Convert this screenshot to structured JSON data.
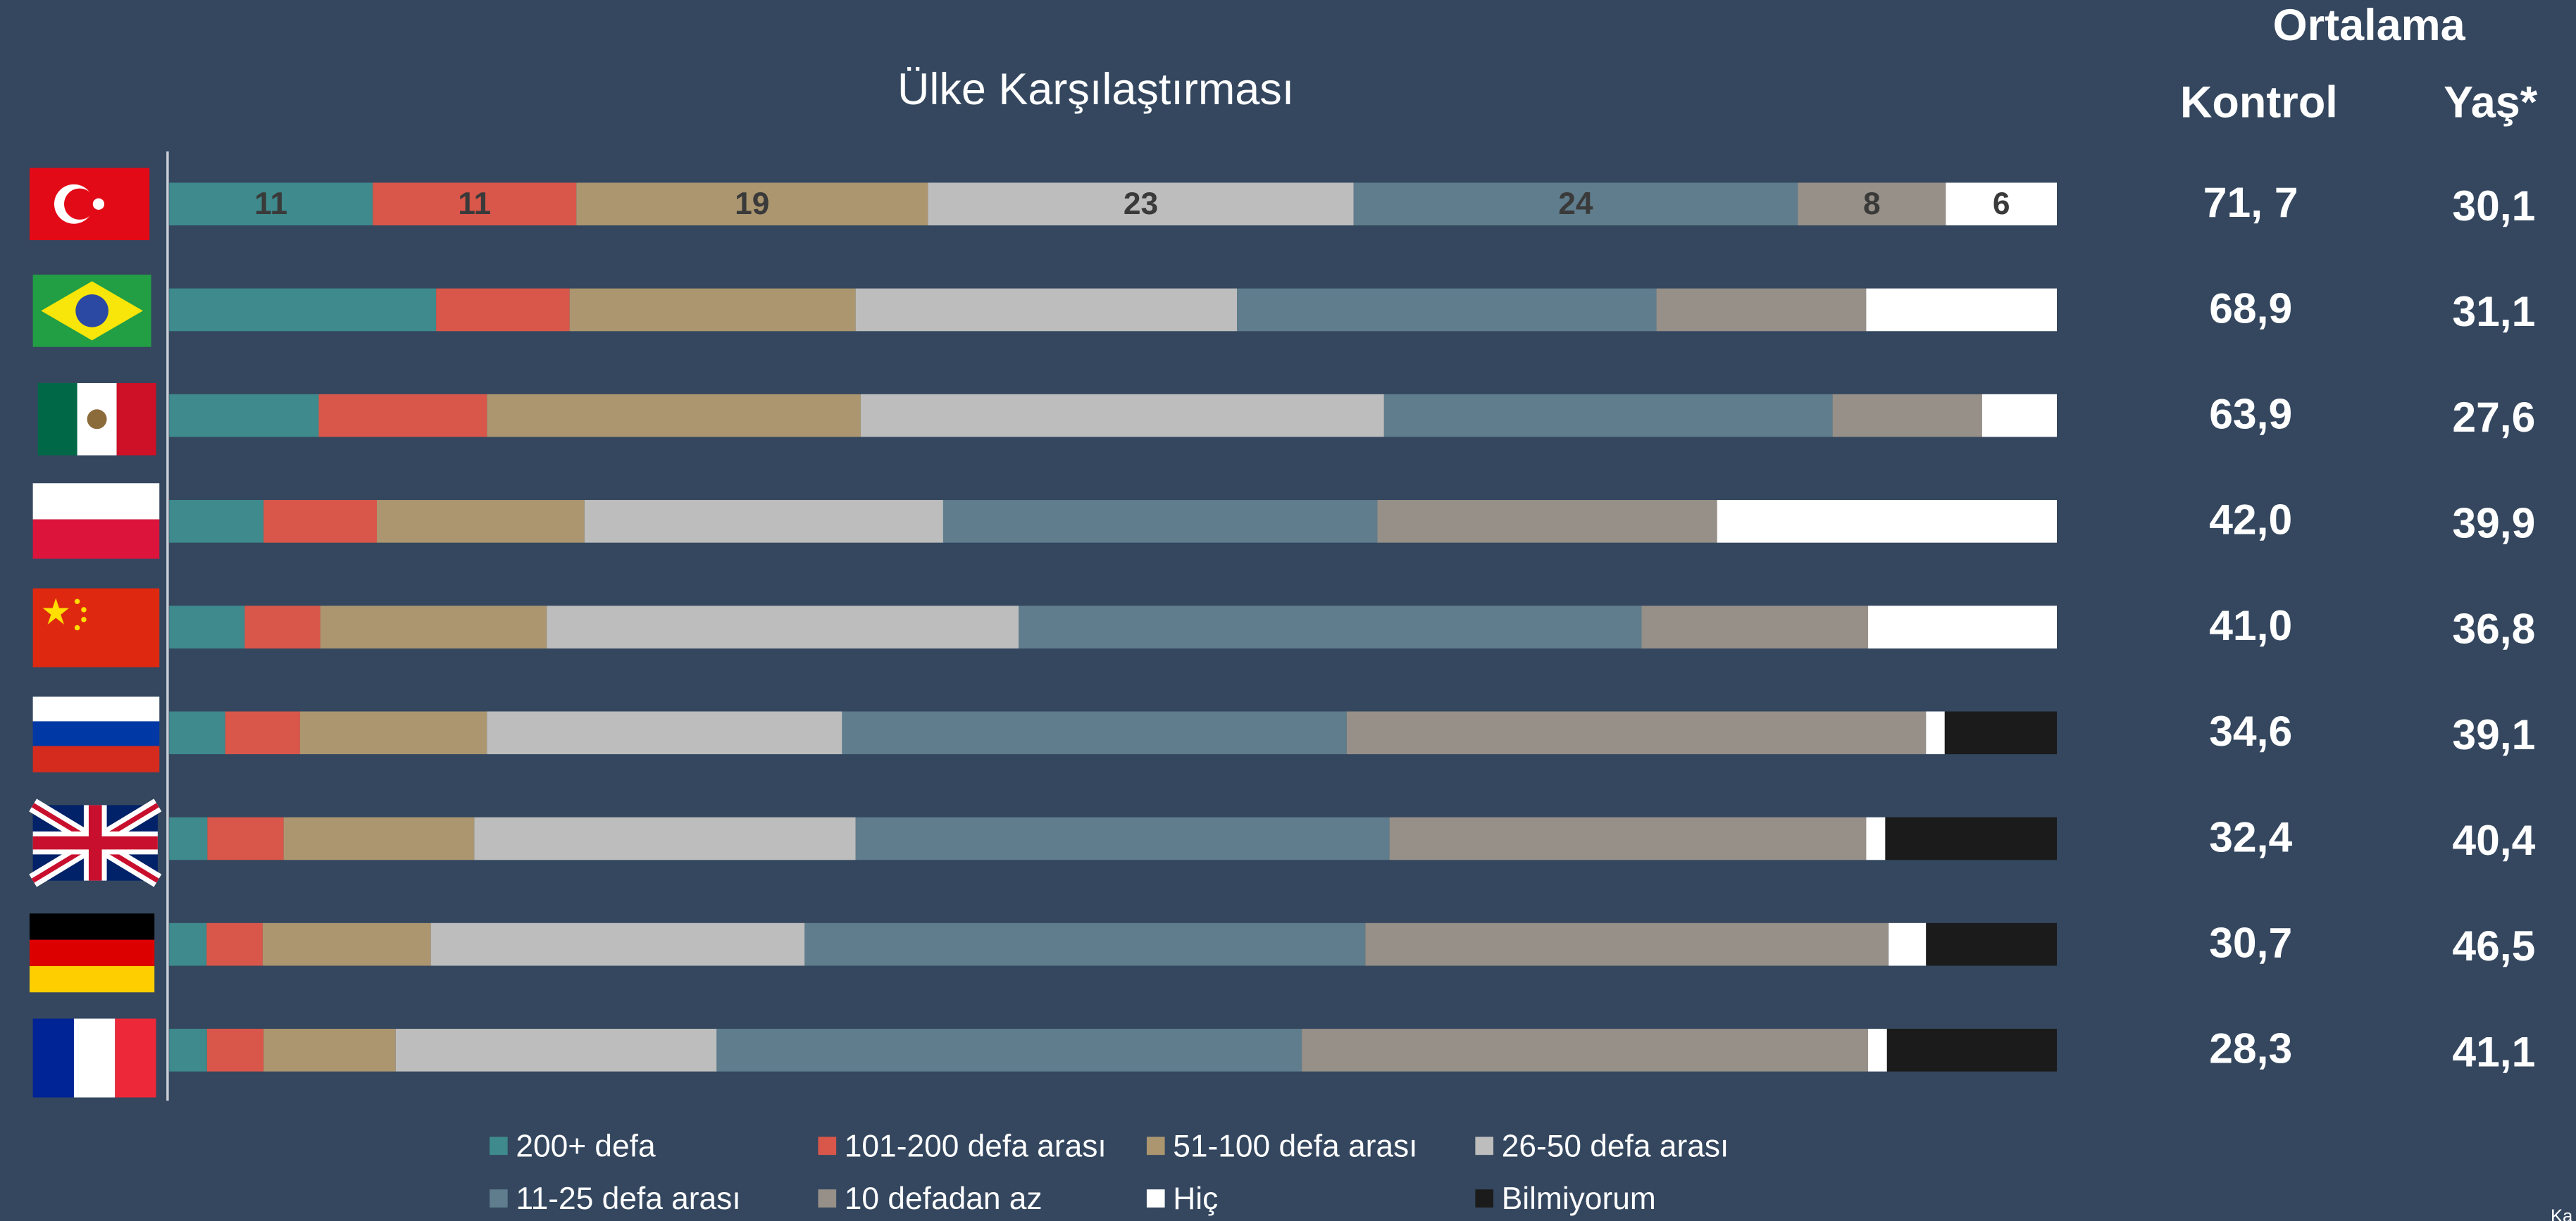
{
  "chart_data": {
    "type": "stacked-bar-100",
    "title": "Ülke Karşılaştırması",
    "categories": [
      null,
      null,
      null,
      null,
      null,
      null,
      null,
      null,
      null
    ],
    "labeled_categories": [
      0
    ],
    "series": [
      {
        "name": "200+ defa",
        "color": "#3e8a8c",
        "values": [
          11,
          14,
          8,
          5,
          4,
          3,
          2,
          2,
          2
        ]
      },
      {
        "name": "101-200 defa arası",
        "color": "#d9574a",
        "values": [
          11,
          7,
          9,
          6,
          4,
          4,
          4,
          3,
          3
        ]
      },
      {
        "name": "51-100 defa arası",
        "color": "#ab9670",
        "values": [
          19,
          15,
          20,
          11,
          12,
          10,
          10,
          9,
          7
        ]
      },
      {
        "name": "26-50 defa arası",
        "color": "#bdbdbd",
        "values": [
          23,
          20,
          28,
          19,
          25,
          19,
          20,
          20,
          17
        ]
      },
      {
        "name": "11-25 defa arası",
        "color": "#5f7d8c",
        "values": [
          24,
          22,
          24,
          23,
          33,
          27,
          28,
          30,
          31
        ]
      },
      {
        "name": "10 defadan az",
        "color": "#979088",
        "values": [
          8,
          11,
          8,
          18,
          12,
          31,
          25,
          28,
          30
        ]
      },
      {
        "name": "Hiç",
        "color": "#ffffff",
        "values": [
          6,
          10,
          4,
          18,
          10,
          1,
          1,
          2,
          1
        ]
      },
      {
        "name": "Bilmiyorum",
        "color": "#1b1b1b",
        "values": [
          0,
          0,
          0,
          0,
          0,
          6,
          9,
          7,
          9
        ]
      }
    ],
    "side_table": {
      "title": "Ortalama",
      "columns": [
        "Kontrol",
        "Yaş*"
      ],
      "rows": [
        [
          "71, 7",
          "30,1"
        ],
        [
          "68,9",
          "31,1"
        ],
        [
          "63,9",
          "27,6"
        ],
        [
          "42,0",
          "39,9"
        ],
        [
          "41,0",
          "36,8"
        ],
        [
          "34,6",
          "39,1"
        ],
        [
          "32,4",
          "40,4"
        ],
        [
          "30,7",
          "46,5"
        ],
        [
          "28,3",
          "41,1"
        ]
      ]
    },
    "corner_text": "Ka"
  }
}
